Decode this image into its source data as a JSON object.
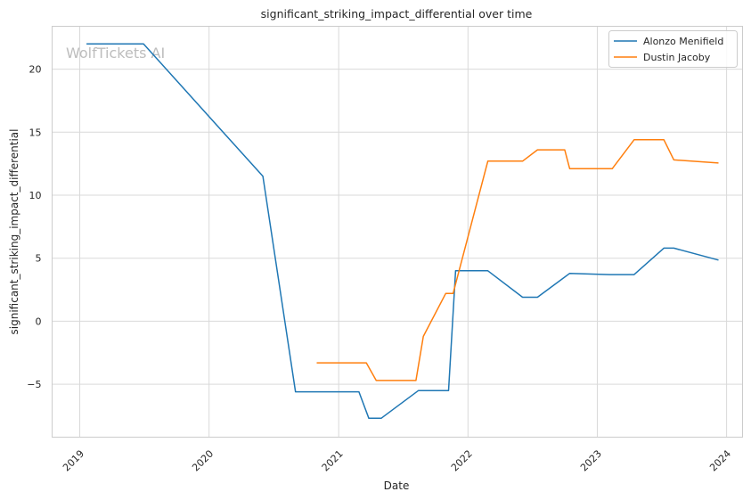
{
  "chart_data": {
    "type": "line",
    "title": "significant_striking_impact_differential over time",
    "xlabel": "Date",
    "ylabel": "significant_striking_impact_differential",
    "watermark": "WolfTickets AI",
    "x_ticks": [
      "2019",
      "2020",
      "2021",
      "2022",
      "2023",
      "2024"
    ],
    "y_ticks": [
      "−5",
      "0",
      "5",
      "10",
      "15",
      "20"
    ],
    "xlim": [
      "2018-10-15",
      "2024-02-15"
    ],
    "ylim": [
      -9.2,
      23.4
    ],
    "grid": true,
    "legend_position": "top-right",
    "series": [
      {
        "name": "Alonzo Menifield",
        "color": "#1f77b4",
        "points": [
          [
            "2019-01-20",
            22.0
          ],
          [
            "2019-06-30",
            22.0
          ],
          [
            "2020-06-01",
            11.5
          ],
          [
            "2020-09-01",
            -5.6
          ],
          [
            "2021-02-27",
            -5.6
          ],
          [
            "2021-03-27",
            -7.7
          ],
          [
            "2021-05-01",
            -7.7
          ],
          [
            "2021-08-14",
            -5.5
          ],
          [
            "2021-11-07",
            -5.5
          ],
          [
            "2021-11-27",
            4.0
          ],
          [
            "2022-02-26",
            4.0
          ],
          [
            "2022-06-04",
            1.9
          ],
          [
            "2022-07-16",
            1.9
          ],
          [
            "2022-10-15",
            3.8
          ],
          [
            "2023-02-05",
            3.7
          ],
          [
            "2023-04-15",
            3.7
          ],
          [
            "2023-07-08",
            5.8
          ],
          [
            "2023-08-05",
            5.8
          ],
          [
            "2023-12-09",
            4.85
          ]
        ]
      },
      {
        "name": "Dustin Jacoby",
        "color": "#ff7f0e",
        "points": [
          [
            "2020-10-31",
            -3.3
          ],
          [
            "2021-03-20",
            -3.3
          ],
          [
            "2021-04-17",
            -4.7
          ],
          [
            "2021-08-07",
            -4.7
          ],
          [
            "2021-08-28",
            -1.2
          ],
          [
            "2021-10-30",
            2.2
          ],
          [
            "2021-11-20",
            2.2
          ],
          [
            "2022-02-26",
            12.7
          ],
          [
            "2022-06-04",
            12.7
          ],
          [
            "2022-07-16",
            13.6
          ],
          [
            "2022-10-01",
            13.6
          ],
          [
            "2022-10-15",
            12.1
          ],
          [
            "2023-02-12",
            12.1
          ],
          [
            "2023-04-15",
            14.4
          ],
          [
            "2023-07-08",
            14.4
          ],
          [
            "2023-08-05",
            12.8
          ],
          [
            "2023-12-09",
            12.55
          ]
        ]
      }
    ]
  }
}
